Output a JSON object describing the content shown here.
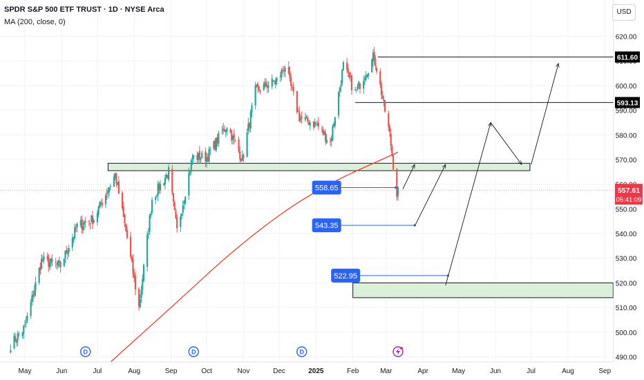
{
  "header": {
    "title": "SPDR S&P 500 ETF TRUST · 1D · NYSE Arca",
    "indicator": "MA (200, close, 0)",
    "currency": "USD"
  },
  "colors": {
    "up": "#26a69a",
    "down": "#ef5350",
    "ma": "#f23f2b",
    "zone_fill": "#dcefd9",
    "blue_tag": "#2962ff",
    "arrow": "#131722",
    "price_tag": "#f23645"
  },
  "chart_data": {
    "type": "candlestick",
    "yaxis": {
      "range": [
        487,
        626
      ],
      "ticks": [
        "620.00",
        "610.00",
        "600.00",
        "590.00",
        "580.00",
        "570.00",
        "560.00",
        "550.00",
        "540.00",
        "530.00",
        "520.00",
        "510.00",
        "500.00",
        "490.00"
      ]
    },
    "xaxis": {
      "ticks": [
        "May",
        "Jun",
        "Jul",
        "Aug",
        "Sep",
        "Oct",
        "Nov",
        "Dec",
        "2025",
        "Feb",
        "Mar",
        "Apr",
        "May",
        "Jun",
        "Jul",
        "Aug",
        "Sep"
      ]
    },
    "price_path": [
      [
        "2024-04-19",
        495
      ],
      [
        "2024-05-01",
        502
      ],
      [
        "2024-05-15",
        529
      ],
      [
        "2024-05-31",
        527
      ],
      [
        "2024-06-14",
        543
      ],
      [
        "2024-06-28",
        546
      ],
      [
        "2024-07-16",
        564
      ],
      [
        "2024-07-25",
        541
      ],
      [
        "2024-08-05",
        510
      ],
      [
        "2024-08-16",
        554
      ],
      [
        "2024-08-30",
        565
      ],
      [
        "2024-09-06",
        541
      ],
      [
        "2024-09-19",
        571
      ],
      [
        "2024-10-01",
        571
      ],
      [
        "2024-10-18",
        584
      ],
      [
        "2024-10-31",
        570
      ],
      [
        "2024-11-11",
        598
      ],
      [
        "2024-11-29",
        602
      ],
      [
        "2024-12-06",
        608
      ],
      [
        "2024-12-18",
        587
      ],
      [
        "2025-01-02",
        584
      ],
      [
        "2025-01-13",
        577
      ],
      [
        "2025-01-24",
        608
      ],
      [
        "2025-02-03",
        597
      ],
      [
        "2025-02-19",
        612
      ],
      [
        "2025-03-04",
        580
      ],
      [
        "2025-03-10",
        556
      ],
      [
        "2025-03-11",
        557.61
      ]
    ],
    "moving_average": {
      "name": "MA (200, close, 0)",
      "points": [
        [
          "2024-07-10",
          487
        ],
        [
          "2024-09-01",
          510
        ],
        [
          "2024-11-01",
          537
        ],
        [
          "2025-01-01",
          558
        ],
        [
          "2025-03-11",
          573
        ]
      ]
    },
    "last_price": "557.61",
    "countdown": "05:41:09",
    "levels": [
      {
        "value": 611.6,
        "label": "611.60"
      },
      {
        "value": 593.13,
        "label": "593.13"
      }
    ],
    "zones": [
      {
        "from": "2024-07-10",
        "to": "2025-06-30",
        "low": 565.5,
        "high": 568.5
      },
      {
        "from": "2025-02-01",
        "to": "2025-09-08",
        "low": 514,
        "high": 520
      }
    ],
    "targets": [
      {
        "value": 558.65,
        "label": "558.65",
        "start": "2025-01-07",
        "end": "2025-03-09"
      },
      {
        "value": 543.35,
        "label": "543.35",
        "start": "2025-01-07",
        "end": "2025-03-25"
      },
      {
        "value": 522.95,
        "label": "522.95",
        "start": "2025-01-23",
        "end": "2025-04-22"
      }
    ],
    "projection_paths": [
      [
        [
          "2025-03-15",
          558
        ],
        [
          "2025-03-25",
          568
        ]
      ],
      [
        [
          "2025-03-25",
          543
        ],
        [
          "2025-04-20",
          568
        ]
      ],
      [
        [
          "2025-04-20",
          519
        ],
        [
          "2025-05-28",
          585
        ],
        [
          "2025-06-23",
          568
        ],
        [
          "2025-07-01",
          568
        ],
        [
          "2025-07-24",
          609
        ]
      ]
    ],
    "event_markers": [
      {
        "date": "2024-06-21",
        "label": "D"
      },
      {
        "date": "2024-09-20",
        "label": "D"
      },
      {
        "date": "2024-12-20",
        "label": "D"
      },
      {
        "date": "2025-03-11",
        "label": "flash"
      }
    ]
  }
}
